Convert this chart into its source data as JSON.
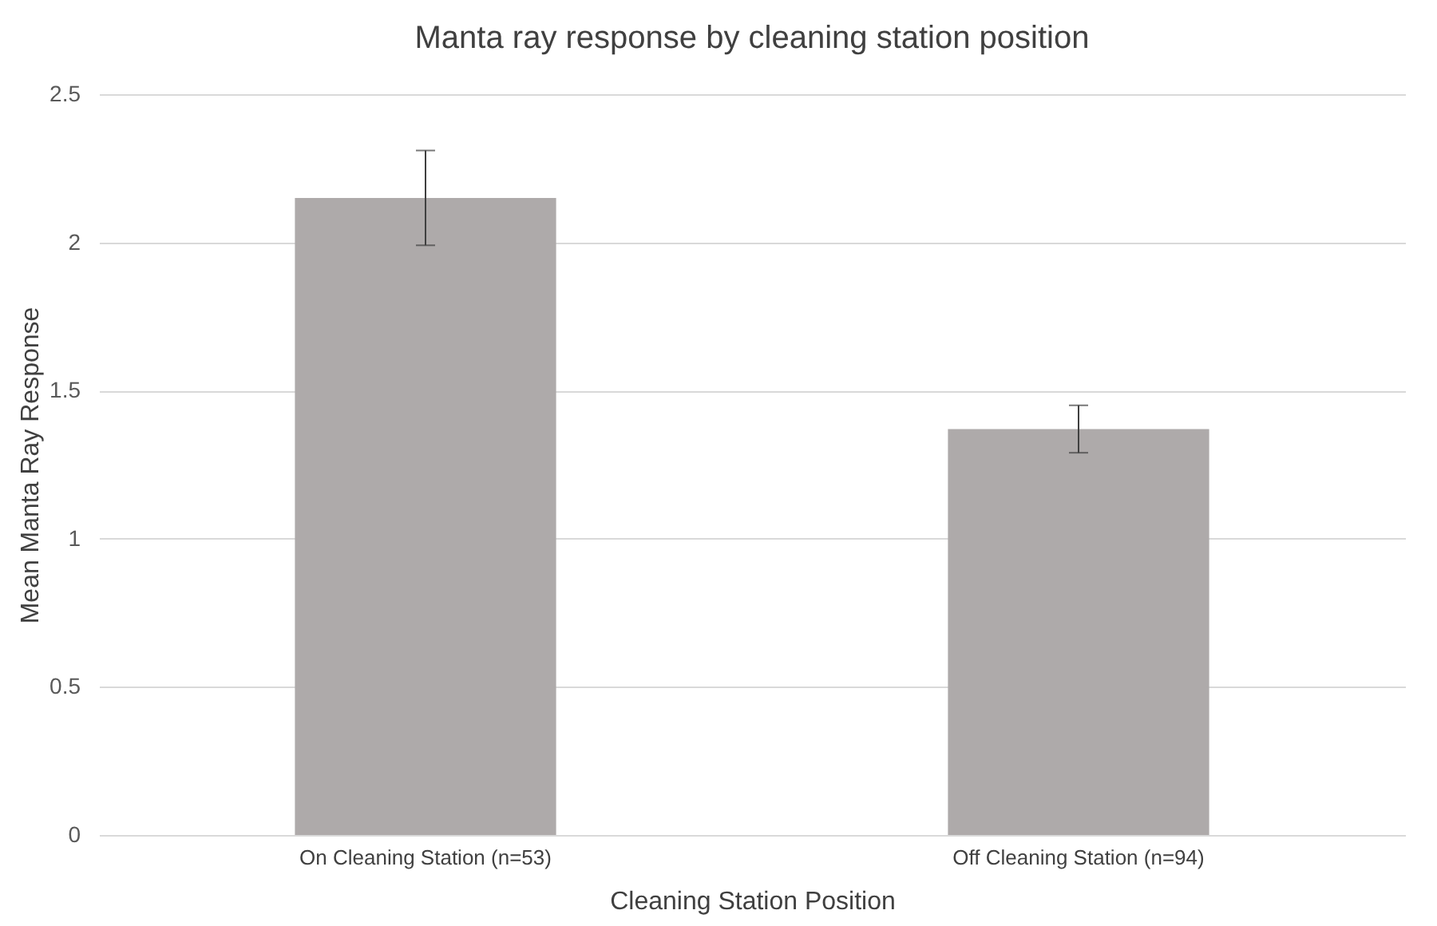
{
  "chart_data": {
    "type": "bar",
    "title": "Manta ray response by cleaning station position",
    "xlabel": "Cleaning Station Position",
    "ylabel": "Mean Manta Ray Response",
    "categories": [
      "On Cleaning Station (n=53)",
      "Off Cleaning Station (n=94)"
    ],
    "values": [
      2.15,
      1.37
    ],
    "errors": [
      0.16,
      0.08
    ],
    "color": "#aeaaaa",
    "ylim": [
      0,
      2.5
    ],
    "yticks": [
      0,
      0.5,
      1,
      1.5,
      2,
      2.5
    ],
    "grid": "y"
  }
}
